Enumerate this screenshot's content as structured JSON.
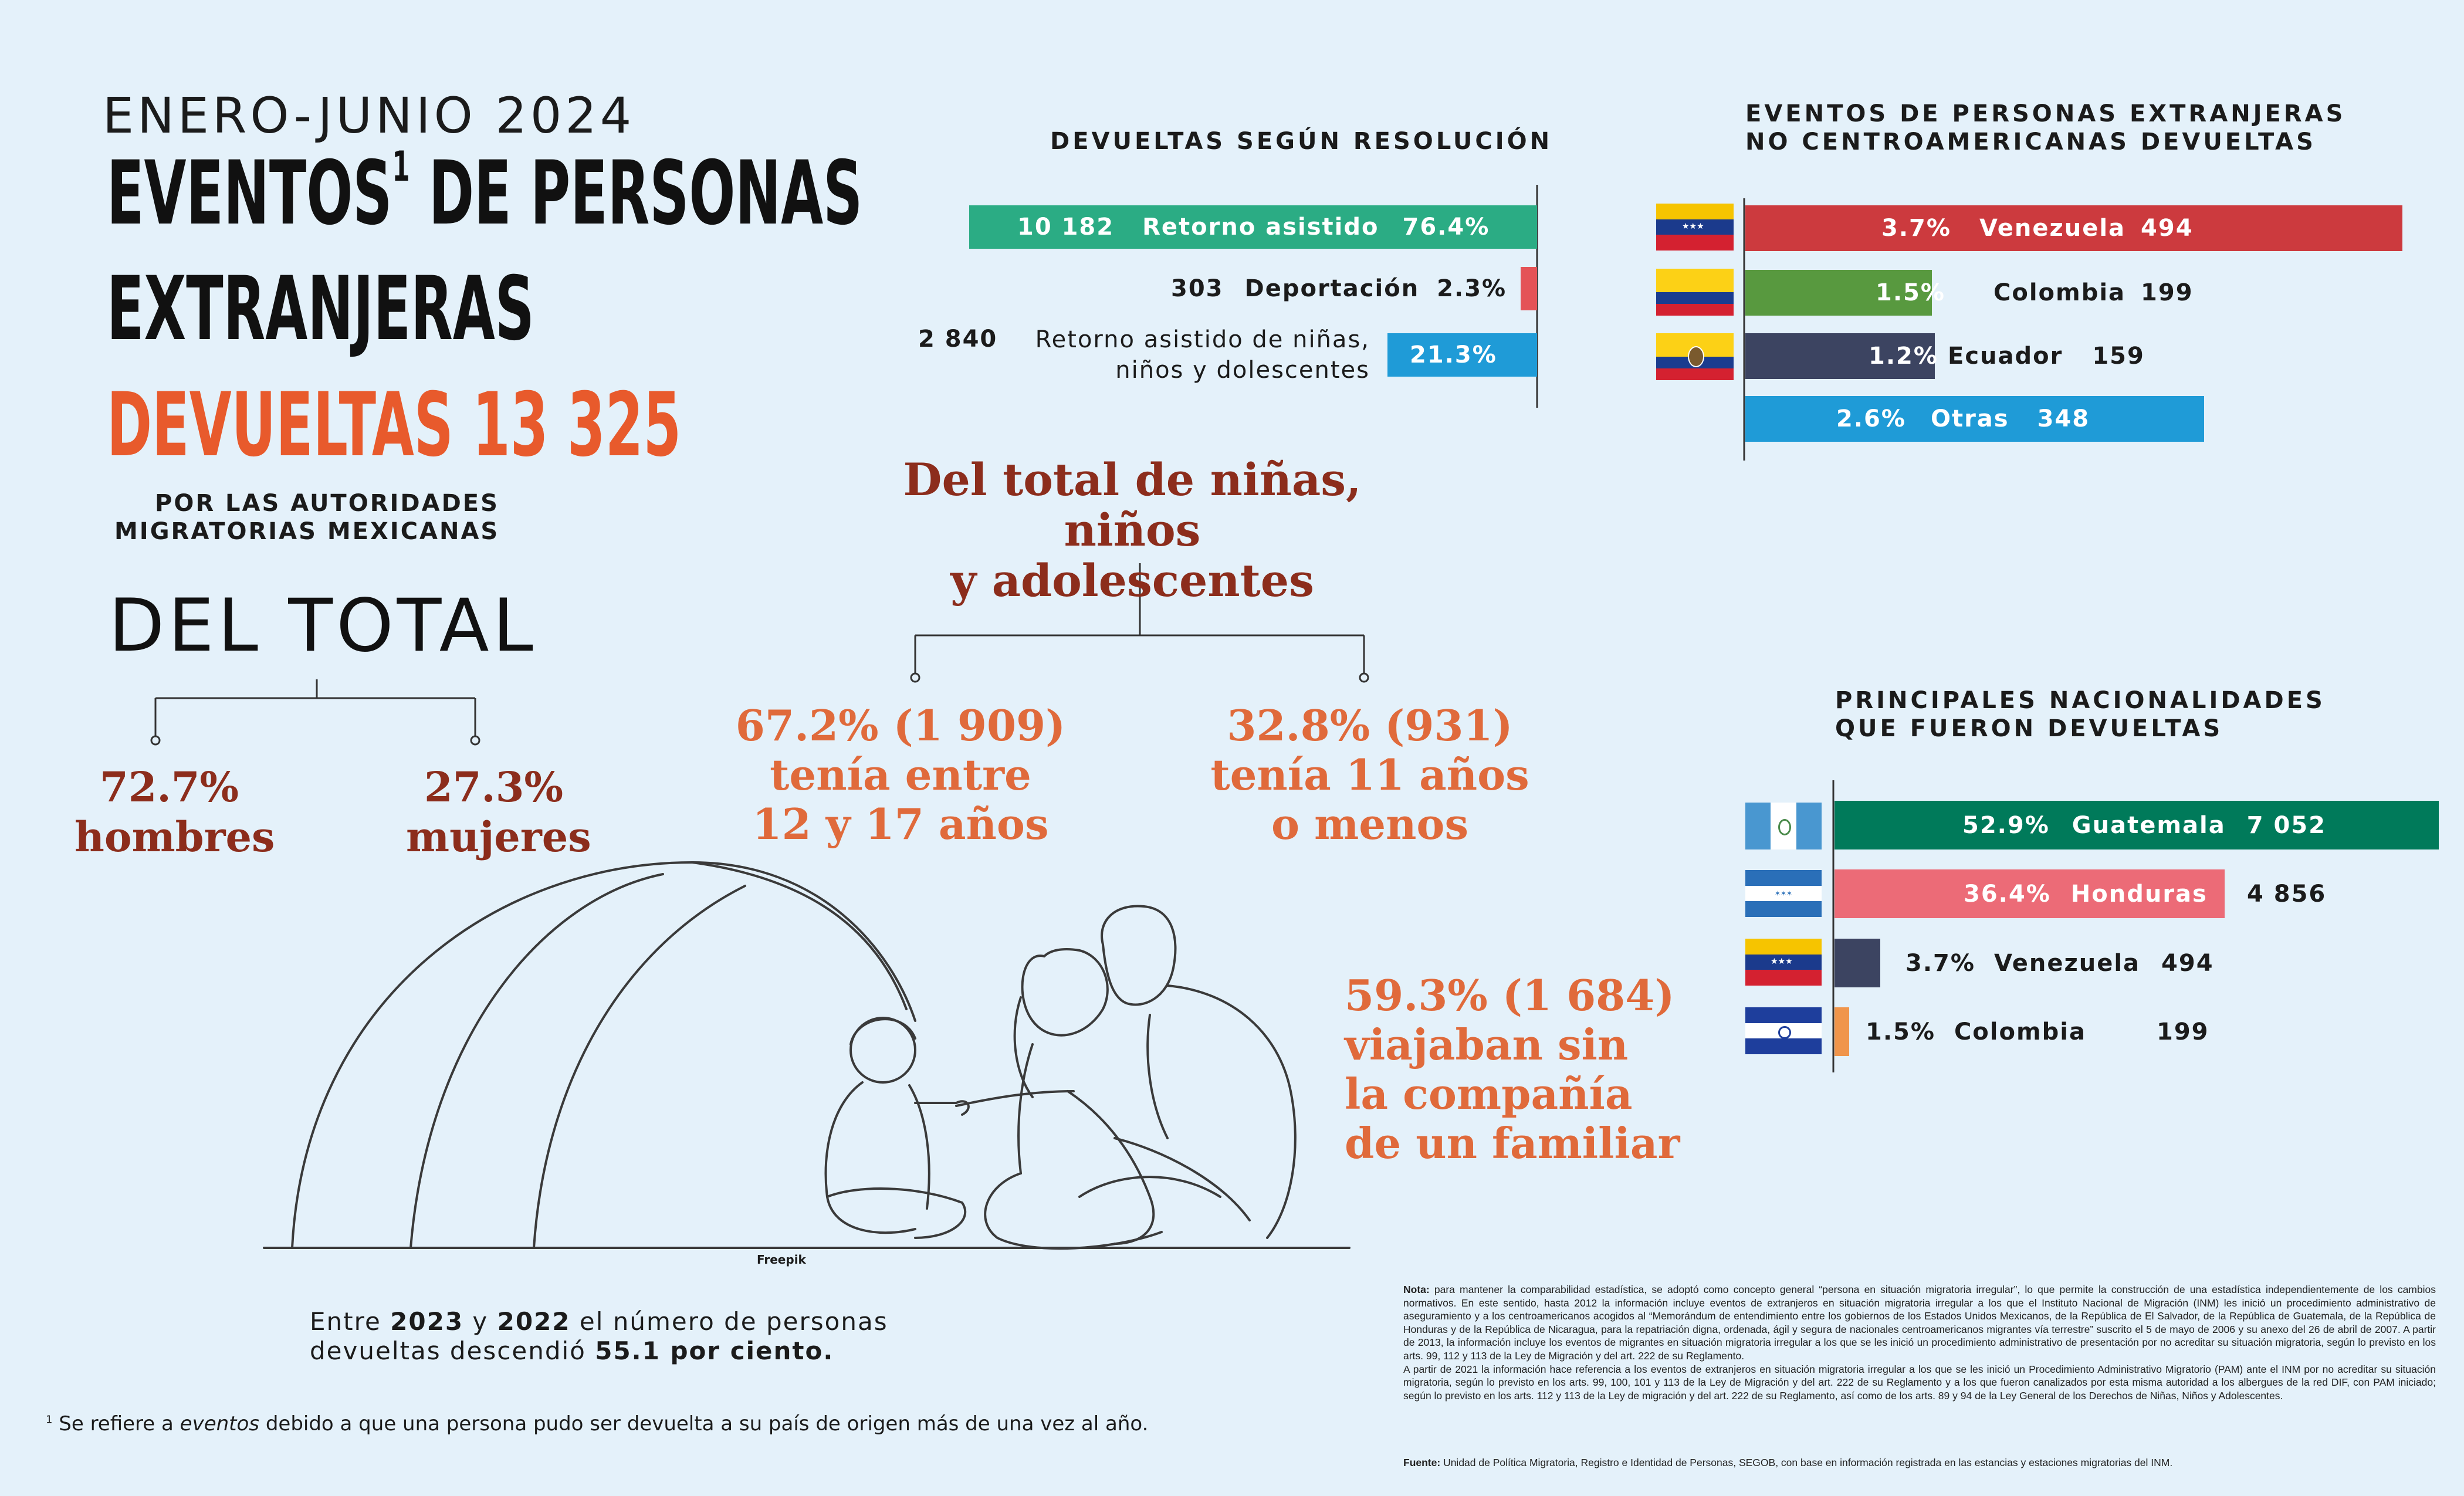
{
  "header": {
    "period": "ENERO-JUNIO 2024",
    "title_line1": "EVENTOS",
    "title_sup": "1",
    "title_line1b": " DE PERSONAS",
    "title_line2": "EXTRANJERAS",
    "title_line3": "DEVUELTAS 13 325",
    "subtitle_line1": "POR LAS AUTORIDADES",
    "subtitle_line2": "MIGRATORIAS MEXICANAS"
  },
  "del_total": {
    "title": "DEL TOTAL",
    "hombres_pct": "72.7%",
    "hombres_label": "hombres",
    "mujeres_pct": "27.3%",
    "mujeres_label": "mujeres"
  },
  "ninos": {
    "title_line1": "Del total de niñas, niños",
    "title_line2": "y adolescentes",
    "left_line1": "67.2% (1 909)",
    "left_line2": "tenía entre",
    "left_line3": "12 y 17 años",
    "right_line1": "32.8% (931)",
    "right_line2": "tenía 11 años",
    "right_line3": "o menos",
    "solos_line1": "59.3% (1 684)",
    "solos_line2": "viajaban sin",
    "solos_line3": "la compañía",
    "solos_line4": "de un familiar"
  },
  "illustration_credit": "Freepik",
  "comparison": {
    "p1": "Entre ",
    "y1": "2023",
    "p2": " y ",
    "y2": "2022",
    "p3": " el número de personas",
    "p4": "devueltas descendió ",
    "pct": "55.1 por ciento."
  },
  "footnote": {
    "mark": "1",
    "p1": " Se refiere a ",
    "em": "eventos",
    "p2": " debido a que una persona pudo ser devuelta a su país de origen más de una vez al año."
  },
  "chart_data": [
    {
      "type": "bar",
      "title": "DEVUELTAS SEGÚN RESOLUCIÓN",
      "categories": [
        "Retorno asistido",
        "Deportación",
        "Retorno asistido de niñas, niños y dolescentes"
      ],
      "values": [
        10182,
        303,
        2840
      ],
      "value_labels": [
        "10 182",
        "303",
        "2 840"
      ],
      "percent_labels": [
        "76.4%",
        "2.3%",
        "21.3%"
      ],
      "category_label_lines": [
        "Retorno asistido de niñas,",
        "niños y dolescentes"
      ],
      "colors": [
        "#2bac84",
        "#e45357",
        "#1f9bd7"
      ]
    },
    {
      "type": "bar",
      "title_line1": "EVENTOS DE PERSONAS EXTRANJERAS",
      "title_line2": "NO CENTROAMERICANAS DEVUELTAS",
      "categories": [
        "Venezuela",
        "Colombia",
        "Ecuador",
        "Otras"
      ],
      "values": [
        494,
        199,
        159,
        348
      ],
      "percent_labels": [
        "3.7%",
        "1.5%",
        "1.2%",
        "2.6%"
      ],
      "colors": [
        "#cc3a3e",
        "#58993f",
        "#3c4461",
        "#1f9bd7"
      ]
    },
    {
      "type": "bar",
      "title_line1": "PRINCIPALES NACIONALIDADES",
      "title_line2": "QUE FUERON DEVUELTAS",
      "categories": [
        "Guatemala",
        "Honduras",
        "Venezuela",
        "Colombia"
      ],
      "values": [
        7052,
        4856,
        494,
        199
      ],
      "value_labels": [
        "7 052",
        "4 856",
        "494",
        "199"
      ],
      "percent_labels": [
        "52.9%",
        "36.4%",
        "3.7%",
        "1.5%"
      ],
      "colors": [
        "#007a5a",
        "#ec6b77",
        "#3c4461",
        "#f0954b"
      ]
    }
  ],
  "notes": {
    "nota_label": "Nota:",
    "nota_text": " para mantener la comparabilidad estadística, se adoptó como concepto general “persona en situación migratoria irregular”, lo que permite la construcción de una estadística independientemente de los cambios normativos. En este sentido, hasta 2012 la información incluye eventos de extranjeros en situación migratoria irregular a los que el Instituto Nacional de Migración (INM) les inició un procedimiento administrativo de aseguramiento y a los centroamericanos acogidos al “Memorándum de entendimiento entre los gobiernos de los Estados Unidos Mexicanos, de la República de El Salvador, de la República de Guatemala, de la República de Honduras y de la República de Nicaragua, para la repatriación digna, ordenada, ágil y segura de nacionales centroamericanos migrantes vía terrestre” suscrito el 5 de mayo de 2006 y su anexo del 26 de abril de 2007. A partir de 2013, la información incluye los eventos de migrantes en situación migratoria irregular a los que se les inició un procedimiento administrativo de presentación por no acreditar su situación migratoria, según lo previsto en los arts. 99, 112 y 113 de la Ley de Migración y del art. 222 de su Reglamento.",
    "nota_text2": "A partir de 2021 la información hace referencia a los eventos de extranjeros en situación migratoria irregular a los que se les inició un Procedimiento Administrativo Migratorio (PAM) ante el INM por no acreditar su situación migratoria, según lo previsto en los arts. 99, 100, 101 y 113 de la Ley de Migración y del art. 222 de su Reglamento y a los que fueron canalizados por esta misma autoridad a los albergues de la red DIF, con PAM iniciado; según lo previsto en los arts. 112 y 113 de la Ley de migración y del art. 222 de su Reglamento, así como de los arts. 89 y 94 de la Ley General de los Derechos de Niñas, Niños y Adolescentes.",
    "fuente_label": "Fuente:",
    "fuente_text": " Unidad de Política Migratoria, Registro e Identidad de Personas, SEGOB, con base en información registrada en las estancias y estaciones migratorias del INM."
  }
}
